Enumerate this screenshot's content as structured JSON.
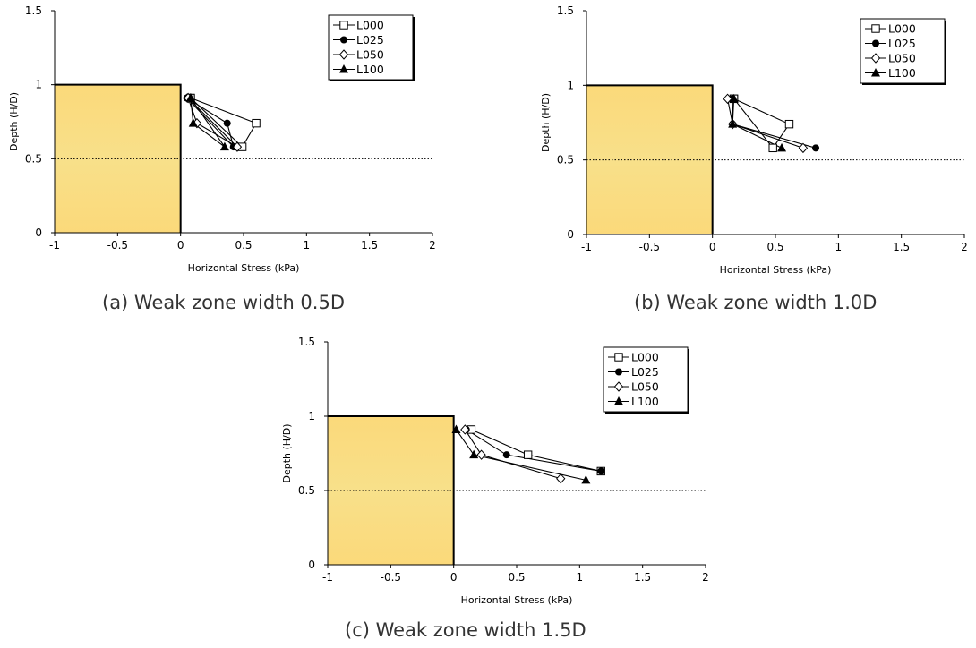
{
  "chart_data": [
    {
      "type": "line",
      "caption": "(a) Weak zone width 0.5D",
      "xlabel": "Horizontal Stress (kPa)",
      "ylabel": "Depth (H/D)",
      "xlim": [
        -1,
        2
      ],
      "ylim": [
        0,
        1.5
      ],
      "xticks": [
        "-1",
        "-0.5",
        "0",
        "0.5",
        "1",
        "1.5",
        "2"
      ],
      "yticks": [
        "0",
        "0.5",
        "1",
        "1.5"
      ],
      "legend_position": "top-right",
      "grid": false,
      "reference_line": {
        "y": 0.5,
        "style": "dotted"
      },
      "shaded_region": {
        "x": [
          -1,
          0
        ],
        "y": [
          0,
          1.0
        ],
        "color": "#FBD97A"
      },
      "series": [
        {
          "name": "L000",
          "marker": "open-square",
          "x": [
            0.08,
            0.6,
            0.49,
            0.08
          ],
          "y": [
            0.91,
            0.74,
            0.58,
            0.91
          ]
        },
        {
          "name": "L025",
          "marker": "filled-circle",
          "x": [
            0.05,
            0.37,
            0.42,
            0.05
          ],
          "y": [
            0.91,
            0.74,
            0.58,
            0.91
          ]
        },
        {
          "name": "L050",
          "marker": "open-diamond",
          "x": [
            0.06,
            0.13,
            0.45,
            0.06
          ],
          "y": [
            0.91,
            0.74,
            0.58,
            0.91
          ]
        },
        {
          "name": "L100",
          "marker": "filled-triangle",
          "x": [
            0.08,
            0.1,
            0.35,
            0.08
          ],
          "y": [
            0.91,
            0.74,
            0.58,
            0.91
          ]
        }
      ]
    },
    {
      "type": "line",
      "caption": "(b) Weak zone width 1.0D",
      "xlabel": "Horizontal Stress (kPa)",
      "ylabel": "Depth (H/D)",
      "xlim": [
        -1,
        2
      ],
      "ylim": [
        0,
        1.5
      ],
      "xticks": [
        "-1",
        "-0.5",
        "0",
        "0.5",
        "1",
        "1.5",
        "2"
      ],
      "yticks": [
        "0",
        "0.5",
        "1",
        "1.5"
      ],
      "legend_position": "top-right",
      "grid": false,
      "reference_line": {
        "y": 0.5,
        "style": "dotted"
      },
      "shaded_region": {
        "x": [
          -1,
          0
        ],
        "y": [
          0,
          1.0
        ],
        "color": "#FBD97A"
      },
      "series": [
        {
          "name": "L000",
          "marker": "open-square",
          "x": [
            0.17,
            0.61,
            0.48,
            0.17
          ],
          "y": [
            0.91,
            0.74,
            0.58,
            0.91
          ]
        },
        {
          "name": "L025",
          "marker": "filled-circle",
          "x": [
            0.16,
            0.16,
            0.82
          ],
          "y": [
            0.91,
            0.74,
            0.58
          ]
        },
        {
          "name": "L050",
          "marker": "open-diamond",
          "x": [
            0.12,
            0.16,
            0.72
          ],
          "y": [
            0.91,
            0.74,
            0.58
          ]
        },
        {
          "name": "L100",
          "marker": "filled-triangle",
          "x": [
            0.17,
            0.16,
            0.55
          ],
          "y": [
            0.91,
            0.74,
            0.58
          ]
        }
      ]
    },
    {
      "type": "line",
      "caption": "(c) Weak zone width 1.5D",
      "xlabel": "Horizontal Stress (kPa)",
      "ylabel": "Depth (H/D)",
      "xlim": [
        -1,
        2
      ],
      "ylim": [
        0,
        1.5
      ],
      "xticks": [
        "-1",
        "-0.5",
        "0",
        "0.5",
        "1",
        "1.5",
        "2"
      ],
      "yticks": [
        "0",
        "0.5",
        "1",
        "1.5"
      ],
      "legend_position": "top-right",
      "grid": false,
      "reference_line": {
        "y": 0.5,
        "style": "dotted"
      },
      "shaded_region": {
        "x": [
          -1,
          0
        ],
        "y": [
          0,
          1.0
        ],
        "color": "#FBD97A"
      },
      "series": [
        {
          "name": "L000",
          "marker": "open-square",
          "x": [
            0.14,
            0.59,
            1.17
          ],
          "y": [
            0.91,
            0.74,
            0.63
          ]
        },
        {
          "name": "L025",
          "marker": "filled-circle",
          "x": [
            0.1,
            0.42,
            1.17
          ],
          "y": [
            0.91,
            0.74,
            0.63
          ]
        },
        {
          "name": "L050",
          "marker": "open-diamond",
          "x": [
            0.09,
            0.22,
            0.85
          ],
          "y": [
            0.91,
            0.74,
            0.58
          ]
        },
        {
          "name": "L100",
          "marker": "filled-triangle",
          "x": [
            0.02,
            0.16,
            1.05
          ],
          "y": [
            0.91,
            0.74,
            0.57
          ]
        }
      ]
    }
  ]
}
